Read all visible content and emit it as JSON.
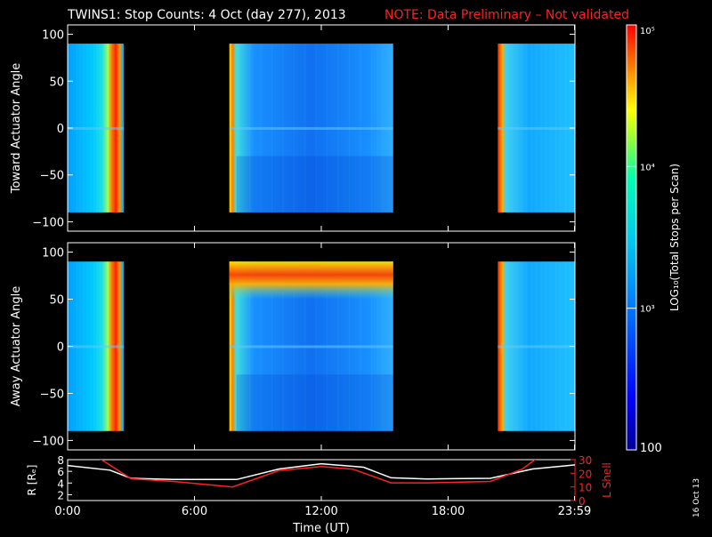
{
  "title": {
    "main": "TWINS1: Stop Counts:  4 Oct (day 277), 2013",
    "note": "NOTE: Data Preliminary – Not validated",
    "note_color": "#ff2020"
  },
  "footer": {
    "date_stamp": "16 Oct 13"
  },
  "chart_data": [
    {
      "type": "heatmap",
      "ylabel": "Toward Actuator Angle",
      "ylim": [
        -110,
        110
      ],
      "yticks": [
        -100,
        -50,
        0,
        50,
        100
      ],
      "ytick_labels": [
        "−100",
        "−50",
        "0",
        "50",
        "100"
      ],
      "x_range_hours": [
        0,
        24
      ],
      "data_windows_hours": [
        [
          0.0,
          2.65
        ],
        [
          7.65,
          15.4
        ],
        [
          20.35,
          24.0
        ]
      ],
      "angle_range": [
        -90,
        90
      ],
      "features": [
        {
          "hours": [
            2.0,
            2.65
          ],
          "level": "max",
          "note": "red/orange intensity band near plasmasheet crossing"
        },
        {
          "hours": [
            20.35,
            20.7
          ],
          "level": "max",
          "note": "red/orange intensity band"
        },
        {
          "hours": [
            7.65,
            7.85
          ],
          "level": "high",
          "note": "yellow edge at start of window"
        }
      ]
    },
    {
      "type": "heatmap",
      "ylabel": "Away Actuator Angle",
      "ylim": [
        -110,
        110
      ],
      "yticks": [
        -100,
        -50,
        0,
        50,
        100
      ],
      "ytick_labels": [
        "−100",
        "−50",
        "0",
        "50",
        "100"
      ],
      "x_range_hours": [
        0,
        24
      ],
      "data_windows_hours": [
        [
          0.0,
          2.65
        ],
        [
          7.65,
          15.4
        ],
        [
          20.35,
          24.0
        ]
      ],
      "angle_range": [
        -90,
        90
      ],
      "features": [
        {
          "hours": [
            7.65,
            15.4
          ],
          "angles": [
            60,
            90
          ],
          "level": "max",
          "note": "red/orange band at high away angles"
        },
        {
          "hours": [
            2.0,
            2.65
          ],
          "level": "max",
          "note": "red/orange intensity band"
        },
        {
          "hours": [
            20.35,
            20.7
          ],
          "level": "max",
          "note": "red/orange intensity band"
        }
      ]
    },
    {
      "type": "line",
      "ylabel_left": "R [Rₑ]",
      "ylabel_right": "L Shell",
      "ylim_left": [
        1,
        8
      ],
      "ylim_right": [
        0,
        30
      ],
      "yticks_left": [
        2,
        4,
        6,
        8
      ],
      "yticks_right": [
        0,
        10,
        20,
        30
      ],
      "xlabel": "Time (UT)",
      "xticks_hours": [
        0,
        6,
        12,
        18,
        23.98
      ],
      "xtick_labels": [
        "0:00",
        "6:00",
        "12:00",
        "18:00",
        "23:59"
      ],
      "series": [
        {
          "color": "#ffffff",
          "axis": "left",
          "x": [
            0,
            2,
            3,
            5,
            8,
            10,
            12,
            14,
            15.3,
            17,
            20,
            22,
            24
          ],
          "y": [
            7.0,
            6.2,
            4.8,
            4.6,
            4.6,
            6.4,
            7.3,
            6.7,
            4.9,
            4.7,
            4.8,
            6.4,
            7.1
          ]
        },
        {
          "color": "#ff2020",
          "axis": "right",
          "x": [
            0,
            1.6,
            3,
            5,
            7.8,
            10,
            12,
            13.5,
            15.3,
            17,
            20,
            21.5,
            22.2
          ],
          "y": [
            40,
            30,
            16,
            14,
            10,
            22,
            25,
            23,
            13,
            13,
            14,
            23,
            31
          ]
        }
      ]
    }
  ],
  "colorbar": {
    "label": "LOG₁₀(Total Stops per Scan)",
    "tick_labels": [
      "100",
      "10³",
      "10⁴",
      "10⁵"
    ],
    "log_min": 2,
    "log_max": 5
  }
}
